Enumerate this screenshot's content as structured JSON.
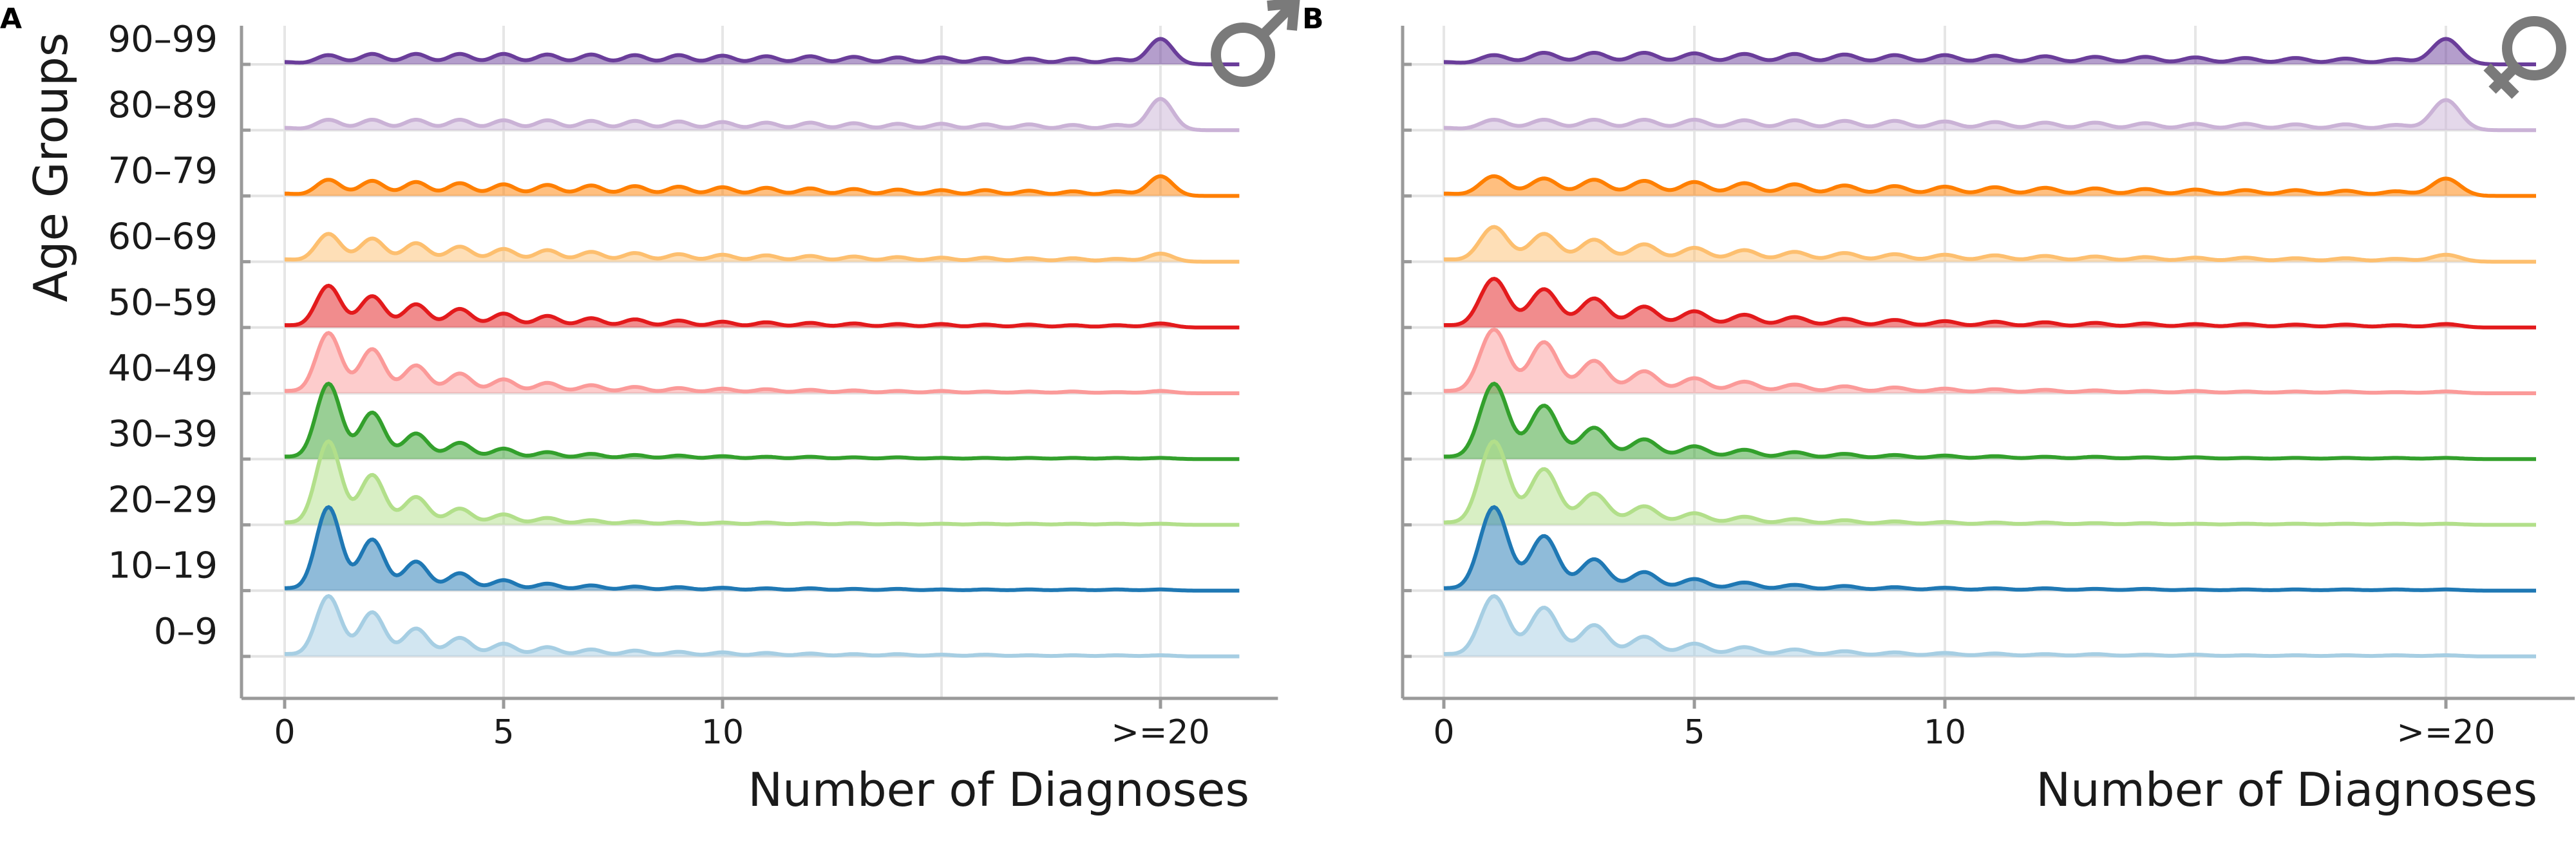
{
  "chart_data": [
    {
      "type": "ridgeline",
      "panel": "A",
      "sex": "male",
      "sex_symbol": "♂",
      "xlabel": "Number of Diagnoses",
      "ylabel": "Age Groups",
      "xlim": [
        -1,
        21.8
      ],
      "x_ticks": [
        0,
        5,
        10,
        20
      ],
      "x_tick_labels": [
        "0",
        "5",
        "10",
        ">=20"
      ],
      "x_grid": [
        0,
        5,
        10,
        15,
        20
      ],
      "overflow_bin": 20,
      "grid": true,
      "series": [
        {
          "name": "0–9",
          "color": "#a6cee3",
          "values": [
            0.02,
            0.52,
            0.38,
            0.24,
            0.16,
            0.11,
            0.08,
            0.06,
            0.05,
            0.04,
            0.035,
            0.03,
            0.025,
            0.02,
            0.02,
            0.015,
            0.015,
            0.01,
            0.01,
            0.01,
            0.01
          ]
        },
        {
          "name": "10–19",
          "color": "#1f78b4",
          "values": [
            0.02,
            0.72,
            0.44,
            0.25,
            0.15,
            0.09,
            0.06,
            0.045,
            0.035,
            0.03,
            0.025,
            0.02,
            0.02,
            0.015,
            0.015,
            0.01,
            0.01,
            0.01,
            0.01,
            0.01,
            0.01
          ]
        },
        {
          "name": "20–29",
          "color": "#b2df8a",
          "values": [
            0.02,
            0.72,
            0.43,
            0.24,
            0.14,
            0.09,
            0.06,
            0.04,
            0.03,
            0.025,
            0.02,
            0.02,
            0.015,
            0.015,
            0.01,
            0.01,
            0.01,
            0.01,
            0.01,
            0.01,
            0.01
          ]
        },
        {
          "name": "30–39",
          "color": "#33a02c",
          "values": [
            0.02,
            0.65,
            0.4,
            0.22,
            0.14,
            0.09,
            0.06,
            0.045,
            0.035,
            0.03,
            0.025,
            0.02,
            0.02,
            0.015,
            0.015,
            0.01,
            0.01,
            0.01,
            0.01,
            0.01,
            0.01
          ]
        },
        {
          "name": "40–49",
          "color": "#fb9a99",
          "values": [
            0.02,
            0.52,
            0.38,
            0.24,
            0.17,
            0.12,
            0.09,
            0.07,
            0.055,
            0.045,
            0.04,
            0.035,
            0.03,
            0.025,
            0.02,
            0.02,
            0.015,
            0.015,
            0.015,
            0.01,
            0.02
          ]
        },
        {
          "name": "50–59",
          "color": "#e31a1c",
          "values": [
            0.02,
            0.36,
            0.27,
            0.2,
            0.16,
            0.12,
            0.1,
            0.08,
            0.07,
            0.06,
            0.05,
            0.045,
            0.04,
            0.035,
            0.03,
            0.03,
            0.025,
            0.025,
            0.02,
            0.02,
            0.035
          ]
        },
        {
          "name": "60–69",
          "color": "#fdbf6f",
          "values": [
            0.02,
            0.24,
            0.2,
            0.16,
            0.13,
            0.11,
            0.1,
            0.085,
            0.075,
            0.065,
            0.06,
            0.055,
            0.05,
            0.045,
            0.04,
            0.035,
            0.035,
            0.03,
            0.03,
            0.025,
            0.07
          ]
        },
        {
          "name": "70–79",
          "color": "#ff7f00",
          "values": [
            0.02,
            0.14,
            0.13,
            0.12,
            0.11,
            0.1,
            0.095,
            0.09,
            0.085,
            0.08,
            0.075,
            0.07,
            0.065,
            0.06,
            0.055,
            0.05,
            0.05,
            0.045,
            0.04,
            0.04,
            0.17
          ]
        },
        {
          "name": "80–89",
          "color": "#cab2d6",
          "values": [
            0.02,
            0.09,
            0.09,
            0.09,
            0.09,
            0.085,
            0.085,
            0.08,
            0.08,
            0.075,
            0.07,
            0.065,
            0.065,
            0.06,
            0.055,
            0.055,
            0.05,
            0.05,
            0.045,
            0.045,
            0.27
          ]
        },
        {
          "name": "90–99",
          "color": "#6a3d9a",
          "values": [
            0.02,
            0.08,
            0.09,
            0.09,
            0.09,
            0.09,
            0.085,
            0.085,
            0.08,
            0.08,
            0.075,
            0.07,
            0.07,
            0.065,
            0.06,
            0.06,
            0.055,
            0.05,
            0.05,
            0.045,
            0.22
          ]
        }
      ]
    },
    {
      "type": "ridgeline",
      "panel": "B",
      "sex": "female",
      "sex_symbol": "♀",
      "xlabel": "Number of Diagnoses",
      "ylabel": "",
      "xlim": [
        -1,
        21.8
      ],
      "x_ticks": [
        0,
        5,
        10,
        20
      ],
      "x_tick_labels": [
        "0",
        "5",
        "10",
        ">=20"
      ],
      "x_grid": [
        0,
        5,
        10,
        15,
        20
      ],
      "overflow_bin": 20,
      "grid": true,
      "series": [
        {
          "name": "0–9",
          "color": "#a6cee3",
          "values": [
            0.02,
            0.52,
            0.42,
            0.27,
            0.17,
            0.11,
            0.08,
            0.06,
            0.045,
            0.035,
            0.03,
            0.025,
            0.02,
            0.02,
            0.015,
            0.015,
            0.01,
            0.01,
            0.01,
            0.01,
            0.01
          ]
        },
        {
          "name": "10–19",
          "color": "#1f78b4",
          "values": [
            0.02,
            0.72,
            0.47,
            0.27,
            0.16,
            0.1,
            0.07,
            0.05,
            0.04,
            0.03,
            0.025,
            0.02,
            0.02,
            0.015,
            0.015,
            0.01,
            0.01,
            0.01,
            0.01,
            0.01,
            0.01
          ]
        },
        {
          "name": "20–29",
          "color": "#b2df8a",
          "values": [
            0.02,
            0.72,
            0.48,
            0.27,
            0.16,
            0.1,
            0.07,
            0.05,
            0.04,
            0.03,
            0.025,
            0.02,
            0.02,
            0.015,
            0.015,
            0.01,
            0.01,
            0.01,
            0.01,
            0.01,
            0.01
          ]
        },
        {
          "name": "30–39",
          "color": "#33a02c",
          "values": [
            0.02,
            0.65,
            0.46,
            0.27,
            0.17,
            0.11,
            0.08,
            0.06,
            0.045,
            0.035,
            0.03,
            0.025,
            0.02,
            0.02,
            0.015,
            0.015,
            0.01,
            0.01,
            0.01,
            0.01,
            0.01
          ]
        },
        {
          "name": "40–49",
          "color": "#fb9a99",
          "values": [
            0.02,
            0.55,
            0.44,
            0.28,
            0.19,
            0.13,
            0.1,
            0.075,
            0.06,
            0.05,
            0.04,
            0.035,
            0.03,
            0.025,
            0.02,
            0.02,
            0.015,
            0.015,
            0.015,
            0.01,
            0.015
          ]
        },
        {
          "name": "50–59",
          "color": "#e31a1c",
          "values": [
            0.02,
            0.42,
            0.33,
            0.25,
            0.18,
            0.14,
            0.11,
            0.09,
            0.075,
            0.065,
            0.055,
            0.05,
            0.045,
            0.04,
            0.035,
            0.03,
            0.03,
            0.025,
            0.025,
            0.02,
            0.03
          ]
        },
        {
          "name": "60–69",
          "color": "#fdbf6f",
          "values": [
            0.02,
            0.3,
            0.24,
            0.19,
            0.15,
            0.12,
            0.1,
            0.085,
            0.075,
            0.065,
            0.06,
            0.055,
            0.05,
            0.045,
            0.04,
            0.035,
            0.035,
            0.03,
            0.03,
            0.025,
            0.06
          ]
        },
        {
          "name": "70–79",
          "color": "#ff7f00",
          "values": [
            0.02,
            0.17,
            0.15,
            0.14,
            0.13,
            0.12,
            0.11,
            0.1,
            0.09,
            0.085,
            0.08,
            0.075,
            0.07,
            0.065,
            0.06,
            0.055,
            0.05,
            0.05,
            0.045,
            0.04,
            0.15
          ]
        },
        {
          "name": "80–89",
          "color": "#cab2d6",
          "values": [
            0.02,
            0.09,
            0.09,
            0.09,
            0.09,
            0.09,
            0.085,
            0.085,
            0.08,
            0.08,
            0.075,
            0.07,
            0.065,
            0.065,
            0.06,
            0.055,
            0.055,
            0.05,
            0.05,
            0.045,
            0.26
          ]
        },
        {
          "name": "90–99",
          "color": "#6a3d9a",
          "values": [
            0.02,
            0.08,
            0.1,
            0.1,
            0.1,
            0.095,
            0.09,
            0.09,
            0.085,
            0.08,
            0.08,
            0.075,
            0.07,
            0.065,
            0.065,
            0.06,
            0.055,
            0.055,
            0.05,
            0.045,
            0.22
          ]
        }
      ]
    }
  ]
}
